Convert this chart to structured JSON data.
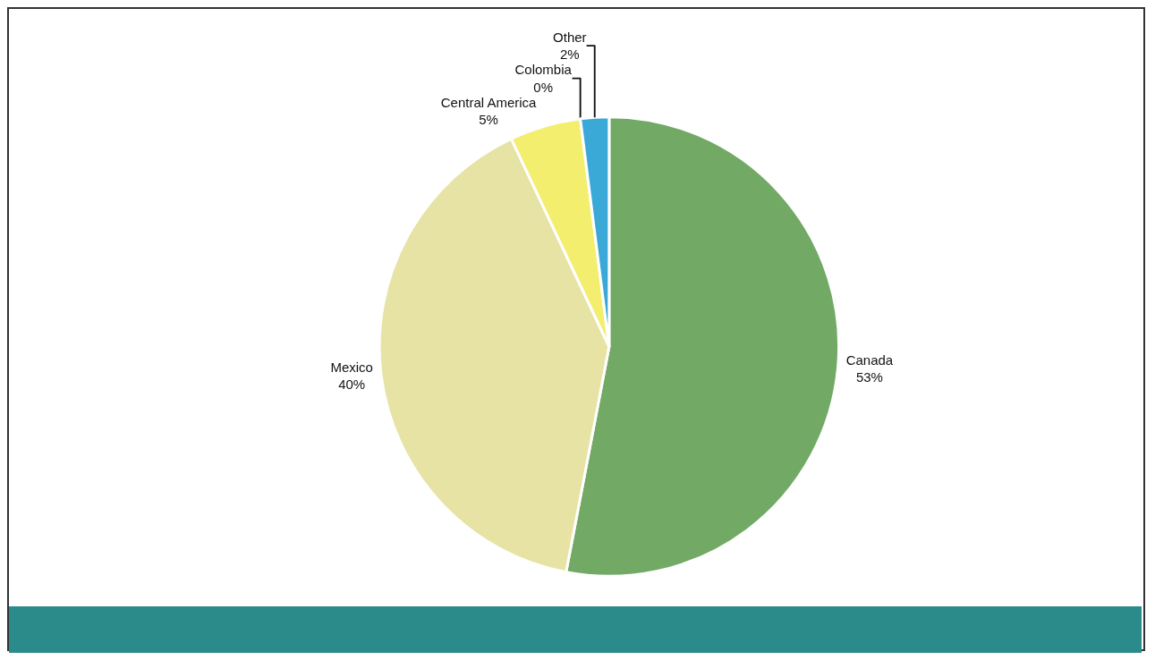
{
  "chart_data": {
    "type": "pie",
    "categories": [
      "Canada",
      "Mexico",
      "Central America",
      "Colombia",
      "Other"
    ],
    "values": [
      53,
      40,
      5,
      0,
      2
    ],
    "colors": [
      "#72a965",
      "#e7e3a5",
      "#f3ee6e",
      "#c9a94a",
      "#3aa9d8"
    ],
    "value_labels": [
      "53%",
      "40%",
      "5%",
      "0%",
      "2%"
    ],
    "legend": false
  }
}
